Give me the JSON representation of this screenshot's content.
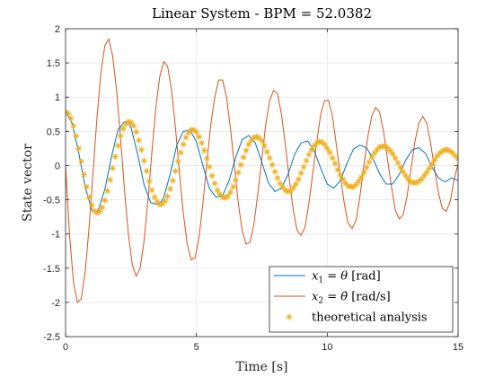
{
  "chart_data": {
    "type": "line",
    "title": "Linear System - BPM = 52.0382",
    "xlabel": "Time [s]",
    "ylabel": "State vector",
    "xlim": [
      0,
      15
    ],
    "ylim": [
      -2.5,
      2
    ],
    "xticks": [
      0,
      5,
      10,
      15
    ],
    "yticks": [
      -2.5,
      -2,
      -1.5,
      -1,
      -0.5,
      0,
      0.5,
      1,
      1.5,
      2
    ],
    "xtick_labels": [
      "0",
      "5",
      "10",
      "15"
    ],
    "ytick_labels": [
      "-2.5",
      "-2",
      "-1.5",
      "-1",
      "-0.5",
      "0",
      "0.5",
      "1",
      "1.5",
      "2"
    ],
    "grid": true,
    "legend_placement": "bottom-right",
    "series": [
      {
        "name": "x1 = θ [rad]",
        "legend_parts": [
          "x",
          "1",
          " = ",
          "θ",
          " [rad]"
        ],
        "color": "#0072BD",
        "style": "line",
        "x": [
          0,
          0.25,
          0.5,
          0.75,
          1.0,
          1.13,
          1.25,
          1.5,
          1.75,
          2.0,
          2.25,
          2.38,
          2.5,
          2.75,
          3.0,
          3.25,
          3.5,
          3.63,
          3.75,
          4.0,
          4.25,
          4.5,
          4.75,
          5.0,
          5.25,
          5.5,
          5.75,
          6.0,
          6.25,
          6.5,
          6.75,
          7.0,
          7.25,
          7.5,
          7.75,
          8.0,
          8.25,
          8.5,
          8.75,
          9.0,
          9.25,
          9.5,
          9.75,
          10.0,
          10.25,
          10.5,
          10.75,
          11.0,
          11.25,
          11.5,
          11.75,
          12.0,
          12.25,
          12.5,
          12.75,
          13.0,
          13.25,
          13.5,
          13.75,
          14.0,
          14.25,
          14.5,
          14.75,
          15.0
        ],
        "y": [
          0.785,
          0.62,
          0.19,
          -0.31,
          -0.65,
          -0.69,
          -0.65,
          -0.35,
          0.12,
          0.52,
          0.64,
          0.63,
          0.56,
          0.17,
          -0.28,
          -0.54,
          -0.57,
          -0.54,
          -0.47,
          -0.12,
          0.3,
          0.5,
          0.52,
          0.35,
          0.0,
          -0.34,
          -0.46,
          -0.44,
          -0.22,
          0.12,
          0.38,
          0.44,
          0.33,
          0.05,
          -0.25,
          -0.38,
          -0.33,
          -0.13,
          0.16,
          0.33,
          0.36,
          0.22,
          -0.04,
          -0.27,
          -0.33,
          -0.22,
          0.03,
          0.24,
          0.3,
          0.26,
          0.1,
          -0.12,
          -0.27,
          -0.27,
          -0.13,
          0.08,
          0.23,
          0.26,
          0.18,
          -0.02,
          -0.18,
          -0.24,
          -0.18,
          -0.22
        ]
      },
      {
        "name": "x2 = θ̇ [rad/s]",
        "legend_parts": [
          "x",
          "2",
          " = ",
          "θ̇",
          " [rad/s]"
        ],
        "color": "#D95319",
        "style": "line",
        "x": [
          0,
          0.15,
          0.3,
          0.45,
          0.6,
          0.75,
          0.9,
          1.05,
          1.2,
          1.35,
          1.5,
          1.65,
          1.8,
          1.95,
          2.1,
          2.25,
          2.4,
          2.55,
          2.7,
          2.85,
          3.0,
          3.15,
          3.3,
          3.45,
          3.6,
          3.75,
          3.9,
          4.05,
          4.2,
          4.35,
          4.5,
          4.65,
          4.8,
          4.95,
          5.1,
          5.25,
          5.4,
          5.55,
          5.7,
          5.85,
          6.0,
          6.15,
          6.3,
          6.45,
          6.6,
          6.75,
          6.9,
          7.05,
          7.2,
          7.35,
          7.5,
          7.65,
          7.8,
          7.95,
          8.1,
          8.25,
          8.4,
          8.55,
          8.7,
          8.85,
          9.0,
          9.15,
          9.3,
          9.45,
          9.6,
          9.75,
          9.9,
          10.05,
          10.2,
          10.35,
          10.5,
          10.65,
          10.8,
          10.95,
          11.1,
          11.25,
          11.4,
          11.55,
          11.7,
          11.85,
          12.0,
          12.15,
          12.3,
          12.45,
          12.6,
          12.75,
          12.9,
          13.05,
          13.2,
          13.35,
          13.5,
          13.65,
          13.8,
          13.95,
          14.1,
          14.25,
          14.4,
          14.55,
          14.7,
          14.85,
          15.0
        ],
        "y": [
          0,
          -1.0,
          -1.7,
          -2.0,
          -1.95,
          -1.55,
          -0.9,
          -0.1,
          0.7,
          1.35,
          1.75,
          1.85,
          1.6,
          1.1,
          0.4,
          -0.35,
          -1.0,
          -1.45,
          -1.62,
          -1.5,
          -1.1,
          -0.5,
          0.2,
          0.85,
          1.3,
          1.52,
          1.45,
          1.1,
          0.55,
          -0.1,
          -0.7,
          -1.15,
          -1.38,
          -1.35,
          -1.05,
          -0.55,
          0.05,
          0.6,
          1.0,
          1.25,
          1.25,
          1.0,
          0.55,
          0.0,
          -0.55,
          -0.95,
          -1.15,
          -1.12,
          -0.85,
          -0.4,
          0.1,
          0.6,
          0.95,
          1.1,
          1.05,
          0.75,
          0.3,
          -0.2,
          -0.65,
          -0.95,
          -1.02,
          -0.9,
          -0.55,
          -0.1,
          0.35,
          0.75,
          0.95,
          0.95,
          0.72,
          0.3,
          -0.15,
          -0.55,
          -0.85,
          -0.92,
          -0.8,
          -0.45,
          0.0,
          0.42,
          0.72,
          0.85,
          0.78,
          0.5,
          0.1,
          -0.3,
          -0.65,
          -0.78,
          -0.72,
          -0.45,
          -0.05,
          0.35,
          0.62,
          0.72,
          0.62,
          0.33,
          -0.05,
          -0.4,
          -0.63,
          -0.67,
          -0.52,
          -0.2,
          0.02
        ]
      },
      {
        "name": "theoretical analysis",
        "legend_parts": [
          "theoretical analysis"
        ],
        "color": "#EDB120",
        "style": "marker",
        "marker": "asterisk",
        "x": [
          0,
          0.1,
          0.2,
          0.3,
          0.4,
          0.5,
          0.6,
          0.7,
          0.8,
          0.9,
          1.0,
          1.1,
          1.2,
          1.3,
          1.4,
          1.5,
          1.6,
          1.7,
          1.8,
          1.9,
          2.0,
          2.1,
          2.2,
          2.3,
          2.4,
          2.5,
          2.6,
          2.7,
          2.8,
          2.9,
          3.0,
          3.1,
          3.2,
          3.3,
          3.4,
          3.5,
          3.6,
          3.7,
          3.8,
          3.9,
          4.0,
          4.1,
          4.2,
          4.3,
          4.4,
          4.5,
          4.6,
          4.7,
          4.8,
          4.9,
          5.0,
          5.1,
          5.2,
          5.3,
          5.4,
          5.5,
          5.6,
          5.7,
          5.8,
          5.9,
          6.0,
          6.1,
          6.2,
          6.3,
          6.4,
          6.5,
          6.6,
          6.7,
          6.8,
          6.9,
          7.0,
          7.1,
          7.2,
          7.3,
          7.4,
          7.5,
          7.6,
          7.7,
          7.8,
          7.9,
          8.0,
          8.1,
          8.2,
          8.3,
          8.4,
          8.5,
          8.6,
          8.7,
          8.8,
          8.9,
          9.0,
          9.1,
          9.2,
          9.3,
          9.4,
          9.5,
          9.6,
          9.7,
          9.8,
          9.9,
          10.0,
          10.1,
          10.2,
          10.3,
          10.4,
          10.5,
          10.6,
          10.7,
          10.8,
          10.9,
          11.0,
          11.1,
          11.2,
          11.3,
          11.4,
          11.5,
          11.6,
          11.7,
          11.8,
          11.9,
          12.0,
          12.1,
          12.2,
          12.3,
          12.4,
          12.5,
          12.6,
          12.7,
          12.8,
          12.9,
          13.0,
          13.1,
          13.2,
          13.3,
          13.4,
          13.5,
          13.6,
          13.7,
          13.8,
          13.9,
          14.0,
          14.1,
          14.2,
          14.3,
          14.4,
          14.5,
          14.6,
          14.7,
          14.8,
          14.9,
          15.0
        ],
        "y": [
          0.785,
          0.76,
          0.69,
          0.58,
          0.43,
          0.25,
          0.06,
          -0.13,
          -0.31,
          -0.46,
          -0.58,
          -0.66,
          -0.69,
          -0.67,
          -0.61,
          -0.51,
          -0.37,
          -0.21,
          -0.04,
          0.13,
          0.29,
          0.43,
          0.54,
          0.61,
          0.64,
          0.63,
          0.58,
          0.49,
          0.37,
          0.23,
          0.07,
          -0.08,
          -0.23,
          -0.36,
          -0.46,
          -0.53,
          -0.57,
          -0.56,
          -0.52,
          -0.45,
          -0.34,
          -0.22,
          -0.08,
          0.06,
          0.19,
          0.31,
          0.41,
          0.48,
          0.52,
          0.52,
          0.49,
          0.42,
          0.33,
          0.22,
          0.1,
          -0.02,
          -0.15,
          -0.26,
          -0.36,
          -0.42,
          -0.46,
          -0.47,
          -0.45,
          -0.39,
          -0.31,
          -0.21,
          -0.1,
          0.01,
          0.12,
          0.22,
          0.31,
          0.37,
          0.41,
          0.42,
          0.4,
          0.36,
          0.29,
          0.2,
          0.11,
          0.01,
          -0.09,
          -0.18,
          -0.26,
          -0.32,
          -0.36,
          -0.38,
          -0.37,
          -0.33,
          -0.27,
          -0.2,
          -0.11,
          -0.02,
          0.07,
          0.16,
          0.23,
          0.29,
          0.33,
          0.35,
          0.34,
          0.31,
          0.25,
          0.19,
          0.11,
          0.03,
          -0.06,
          -0.14,
          -0.2,
          -0.26,
          -0.3,
          -0.31,
          -0.31,
          -0.28,
          -0.23,
          -0.17,
          -0.1,
          -0.03,
          0.05,
          0.12,
          0.18,
          0.23,
          0.27,
          0.28,
          0.28,
          0.26,
          0.22,
          0.17,
          0.11,
          0.04,
          -0.03,
          -0.09,
          -0.15,
          -0.2,
          -0.24,
          -0.25,
          -0.25,
          -0.23,
          -0.2,
          -0.15,
          -0.1,
          -0.04,
          0.02,
          0.08,
          0.14,
          0.18,
          0.21,
          0.23,
          0.23,
          0.21,
          0.18,
          0.14,
          0.1
        ]
      }
    ]
  }
}
